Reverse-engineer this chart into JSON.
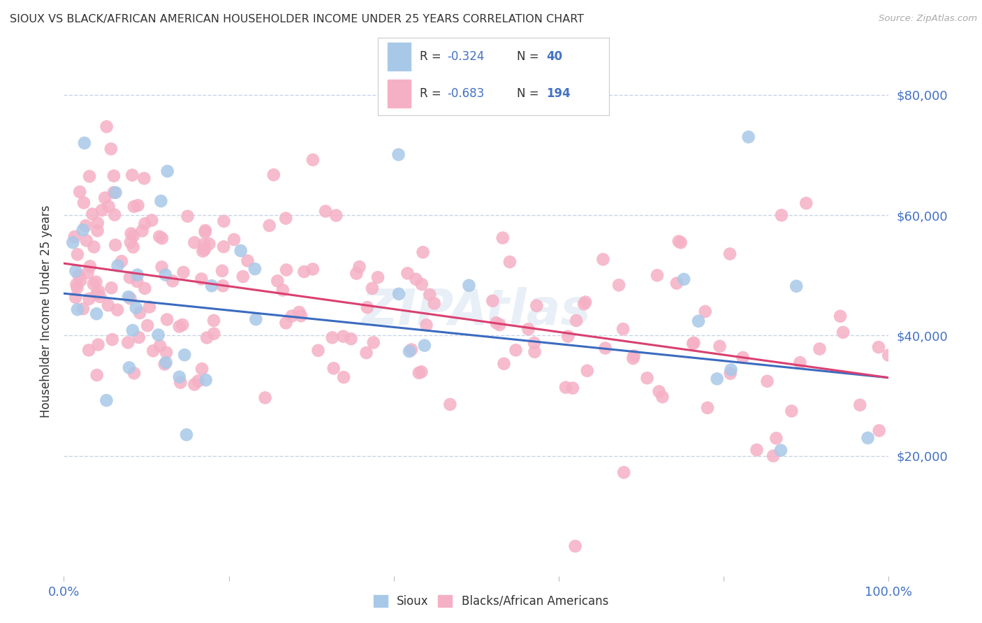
{
  "title": "SIOUX VS BLACK/AFRICAN AMERICAN HOUSEHOLDER INCOME UNDER 25 YEARS CORRELATION CHART",
  "source": "Source: ZipAtlas.com",
  "ylabel": "Householder Income Under 25 years",
  "legend_sioux_R": "-0.324",
  "legend_sioux_N": "40",
  "legend_black_R": "-0.683",
  "legend_black_N": "194",
  "sioux_color": "#a8c8e8",
  "sioux_line_color": "#3a6bbf",
  "black_color": "#f5b0c5",
  "black_line_color": "#d94070",
  "axis_color": "#4472c4",
  "text_dark": "#333333",
  "ytick_labels": [
    "$80,000",
    "$60,000",
    "$40,000",
    "$20,000"
  ],
  "ytick_values": [
    80000,
    60000,
    40000,
    20000
  ],
  "ylim": [
    0,
    88000
  ],
  "xlim": [
    0.0,
    1.0
  ],
  "background_color": "#ffffff",
  "grid_color": "#c8d4e8",
  "watermark": "ZIPAtlas",
  "sioux_line_y0": 47000,
  "sioux_line_y1": 33000,
  "black_line_y0": 52000,
  "black_line_y1": 33000
}
